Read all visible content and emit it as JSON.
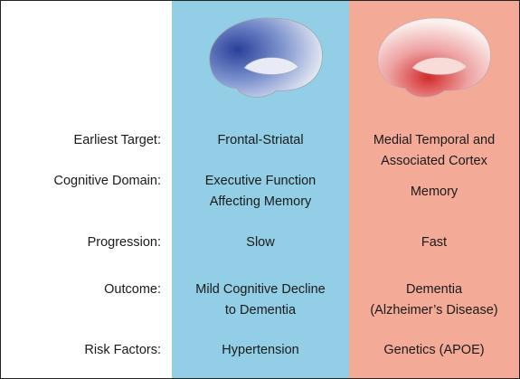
{
  "table": {
    "rows": [
      {
        "label": "Earliest Target:",
        "cells": [
          [
            "Frontal-Striatal"
          ],
          [
            "Medial Temporal and",
            "Associated Cortex"
          ]
        ]
      },
      {
        "label": "Cognitive Domain:",
        "cells": [
          [
            "Executive Function",
            "Affecting Memory"
          ],
          [
            "Memory"
          ]
        ]
      },
      {
        "label": "Progression:",
        "cells": [
          [
            "Slow"
          ],
          [
            "Fast"
          ]
        ]
      },
      {
        "label": "Outcome:",
        "cells": [
          [
            "Mild Cognitive Decline",
            "to Dementia"
          ],
          [
            "Dementia",
            "(Alzheimer’s Disease)"
          ]
        ]
      },
      {
        "label": "Risk Factors:",
        "cells": [
          [
            "Hypertension"
          ],
          [
            "Genetics (APOE)"
          ]
        ]
      }
    ]
  }
}
